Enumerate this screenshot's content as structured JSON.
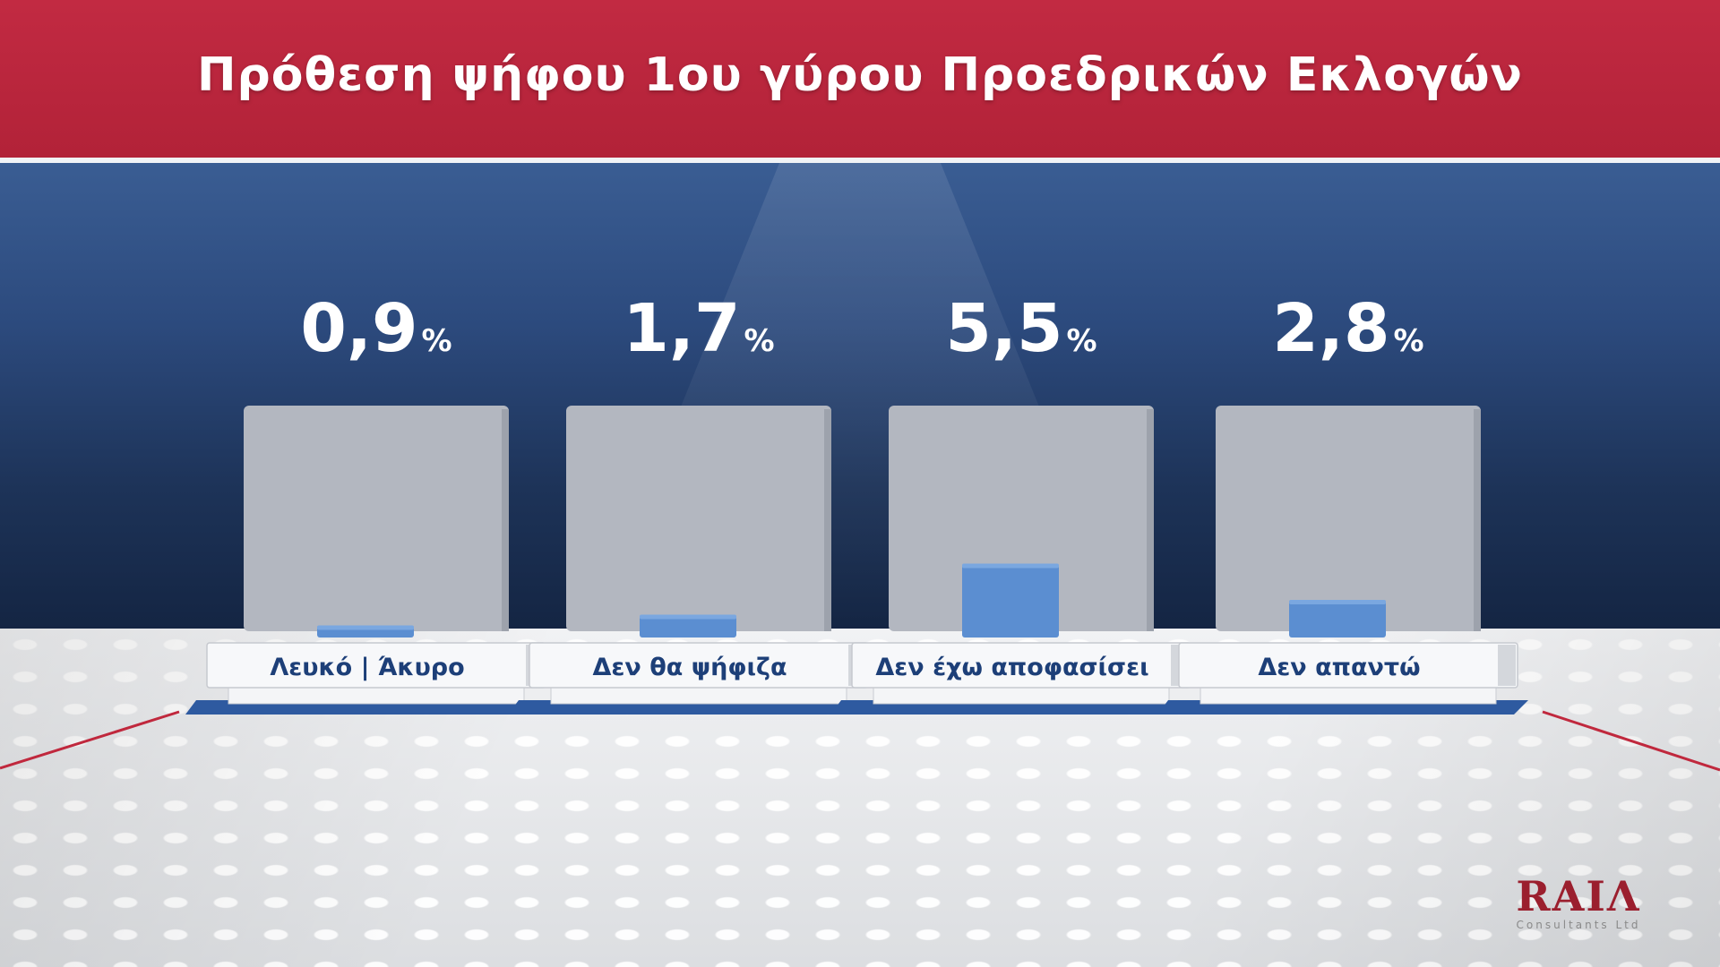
{
  "title": "Πρόθεση ψήφου 1ου γύρου Προεδρικών Εκλογών",
  "chart_data": {
    "type": "bar",
    "title": "Πρόθεση ψήφου 1ου γύρου Προεδρικών Εκλογών",
    "categories": [
      "Λευκό | Άκυρο",
      "Δεν θα ψήφιζα",
      "Δεν έχω αποφασίσει",
      "Δεν απαντώ"
    ],
    "values": [
      0.9,
      1.7,
      5.5,
      2.8
    ],
    "value_labels": [
      "0,9",
      "1,7",
      "5,5",
      "2,8"
    ],
    "unit": "%",
    "bar_color": "#5b8ed1",
    "grid": false
  },
  "logo": {
    "main": "RAIΛ",
    "sub": "Consultants Ltd"
  }
}
